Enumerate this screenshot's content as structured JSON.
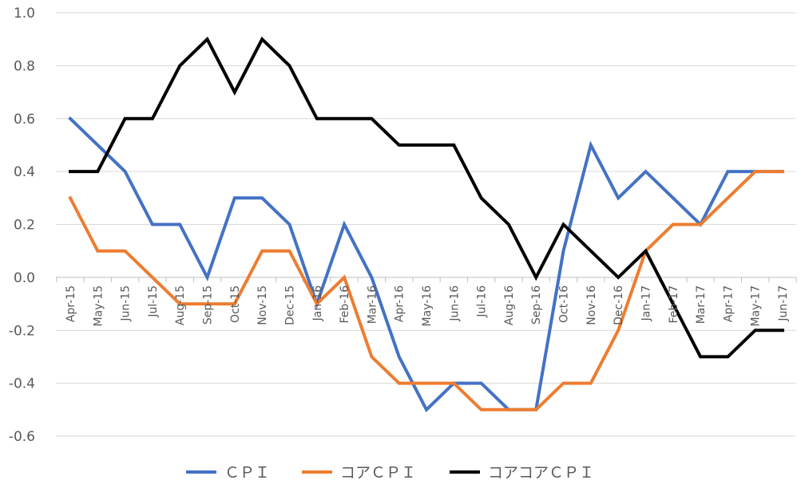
{
  "chart_data": {
    "type": "line",
    "categories": [
      "Apr-15",
      "May-15",
      "Jun-15",
      "Jul-15",
      "Aug-15",
      "Sep-15",
      "Oct-15",
      "Nov-15",
      "Dec-15",
      "Jan-16",
      "Feb-16",
      "Mar-16",
      "Apr-16",
      "May-16",
      "Jun-16",
      "Jul-16",
      "Aug-16",
      "Sep-16",
      "Oct-16",
      "Nov-16",
      "Dec-16",
      "Jan-17",
      "Feb-17",
      "Mar-17",
      "Apr-17",
      "May-17",
      "Jun-17"
    ],
    "series": [
      {
        "name": "ＣＰＩ",
        "color": "#4472c4",
        "values": [
          0.6,
          0.5,
          0.4,
          0.2,
          0.2,
          0.0,
          0.3,
          0.3,
          0.2,
          -0.1,
          0.2,
          0.0,
          -0.3,
          -0.5,
          -0.4,
          -0.4,
          -0.5,
          -0.5,
          0.1,
          0.5,
          0.3,
          0.4,
          0.3,
          0.2,
          0.4,
          0.4,
          0.4
        ]
      },
      {
        "name": "コアＣＰＩ",
        "color": "#ed7d31",
        "values": [
          0.3,
          0.1,
          0.1,
          0.0,
          -0.1,
          -0.1,
          -0.1,
          0.1,
          0.1,
          -0.1,
          0.0,
          -0.3,
          -0.4,
          -0.4,
          -0.4,
          -0.5,
          -0.5,
          -0.5,
          -0.4,
          -0.4,
          -0.2,
          0.1,
          0.2,
          0.2,
          0.3,
          0.4,
          0.4
        ]
      },
      {
        "name": "コアコアＣＰＩ",
        "color": "#000000",
        "values": [
          0.4,
          0.4,
          0.6,
          0.6,
          0.8,
          0.9,
          0.7,
          0.9,
          0.8,
          0.6,
          0.6,
          0.6,
          0.5,
          0.5,
          0.5,
          0.3,
          0.2,
          0.0,
          0.2,
          0.1,
          0.0,
          0.1,
          -0.1,
          -0.3,
          -0.3,
          -0.2,
          -0.2
        ]
      }
    ],
    "yticks": [
      "1.0",
      "0.8",
      "0.6",
      "0.4",
      "0.2",
      "0.0",
      "-0.2",
      "-0.4",
      "-0.6"
    ],
    "ylim": [
      -0.6,
      1.0
    ],
    "grid": true,
    "legend": "bottom",
    "title": "",
    "xlabel": "",
    "ylabel": ""
  }
}
